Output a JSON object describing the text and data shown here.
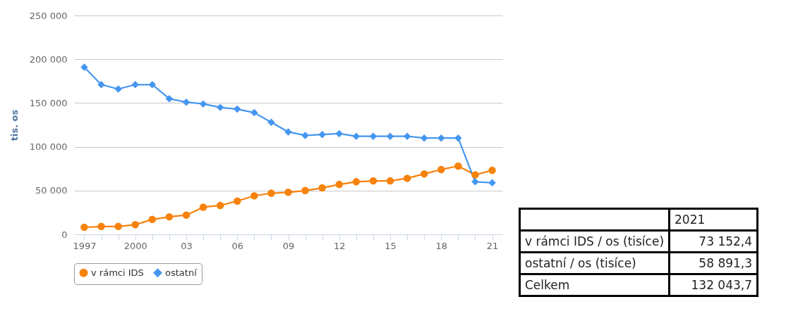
{
  "chart_data": [
    {
      "type": "line",
      "ylabel": "tis. os",
      "categories": [
        "1997",
        null,
        null,
        "2000",
        null,
        null,
        "03",
        null,
        null,
        "06",
        null,
        null,
        "09",
        null,
        null,
        "12",
        null,
        null,
        "15",
        null,
        null,
        "18",
        null,
        null,
        "21"
      ],
      "series": [
        {
          "name": "v rámci IDS",
          "color": "#f7820c",
          "marker": "circle",
          "values": [
            8000,
            9000,
            9000,
            11000,
            17000,
            20000,
            22000,
            31000,
            33000,
            38000,
            44000,
            47000,
            48000,
            50000,
            53000,
            57000,
            60000,
            61000,
            61000,
            64000,
            69000,
            74000,
            78000,
            68000,
            73152.4
          ]
        },
        {
          "name": "ostatní",
          "color": "#4596f0",
          "marker": "diamond",
          "values": [
            191000,
            171000,
            166000,
            171000,
            171000,
            155000,
            151000,
            149000,
            145000,
            143000,
            139000,
            128000,
            117000,
            113000,
            114000,
            115000,
            112000,
            112000,
            112000,
            112000,
            110000,
            110000,
            110000,
            60000,
            58891.3
          ]
        }
      ],
      "ylim": [
        0,
        250000
      ],
      "yticks": [
        0,
        {
          "value": 50000,
          "label": "50 000"
        },
        {
          "value": 100000,
          "label": "100 000"
        },
        {
          "value": 150000,
          "label": "150 000"
        },
        {
          "value": 200000,
          "label": "200 000"
        },
        {
          "value": 250000,
          "label": "250 000"
        }
      ],
      "grid": "y",
      "legend": "bottom"
    },
    {
      "type": "other",
      "title": "2021",
      "categories": [
        "v rámci IDS / os (tisíce)",
        "ostatní / os (tisíce)",
        "Celkem"
      ],
      "value_labels": [
        "73 152,4",
        "58 891,3",
        "132 043,7"
      ]
    }
  ]
}
